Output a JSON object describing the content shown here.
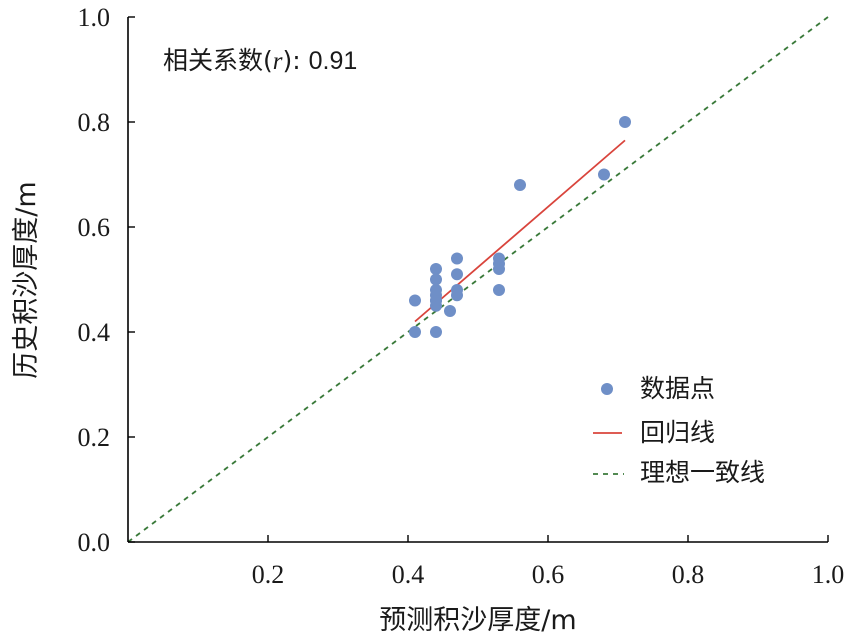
{
  "chart_data": {
    "type": "scatter",
    "xlabel": "预测积沙厚度/m",
    "ylabel": "历史积沙厚度/m",
    "xlim": [
      0,
      1.0
    ],
    "ylim": [
      0,
      1.0
    ],
    "x_ticks": [
      "0.2",
      "0.4",
      "0.6",
      "0.8",
      "1.0"
    ],
    "y_ticks": [
      "0.0",
      "0.2",
      "0.4",
      "0.6",
      "0.8",
      "1.0"
    ],
    "grid": false,
    "annotation": {
      "prefix": "相关系数(",
      "variable": "r",
      "suffix": "): ",
      "value": "0.91"
    },
    "series": [
      {
        "name": "数据点",
        "kind": "scatter",
        "color": "#6f8fc7",
        "x": [
          0.41,
          0.41,
          0.44,
          0.44,
          0.44,
          0.44,
          0.44,
          0.44,
          0.44,
          0.44,
          0.46,
          0.47,
          0.47,
          0.47,
          0.47,
          0.53,
          0.53,
          0.53,
          0.53,
          0.56,
          0.68,
          0.71
        ],
        "y": [
          0.4,
          0.46,
          0.4,
          0.45,
          0.46,
          0.46,
          0.47,
          0.48,
          0.5,
          0.52,
          0.44,
          0.47,
          0.48,
          0.51,
          0.54,
          0.48,
          0.52,
          0.53,
          0.54,
          0.68,
          0.7,
          0.8
        ]
      },
      {
        "name": "回归线",
        "kind": "line",
        "color": "#d9443c",
        "dash": "solid",
        "x": [
          0.41,
          0.71
        ],
        "y": [
          0.42,
          0.765
        ]
      },
      {
        "name": "理想一致线",
        "kind": "line",
        "color": "#3a7a3a",
        "dash": "dashed",
        "x": [
          0.0,
          1.0
        ],
        "y": [
          0.0,
          1.0
        ]
      }
    ],
    "legend": {
      "placement": "bottom-right"
    }
  }
}
